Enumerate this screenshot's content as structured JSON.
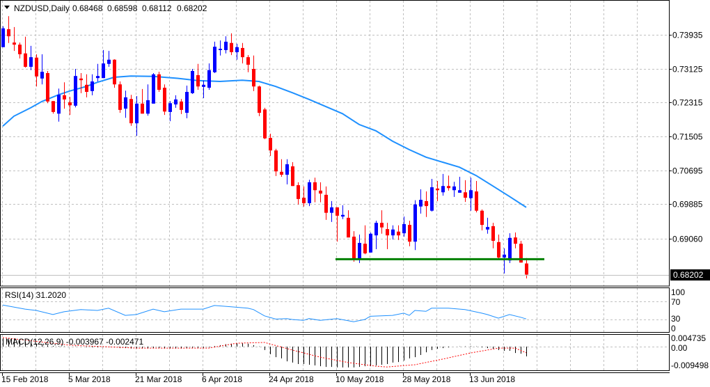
{
  "header": {
    "symbol": "NZDUSD,Daily",
    "open": "0.68468",
    "high": "0.68598",
    "low": "0.68112",
    "close": "0.68202",
    "menu_icon": "triangle-down-icon"
  },
  "colors": {
    "bull": "#0000ff",
    "bear": "#ff0000",
    "ma": "#1e90ff",
    "support": "#008000",
    "rsi": "#1e90ff",
    "macd_hist": "#000000",
    "macd_signal": "#ff0000",
    "grid": "#c0c0c0"
  },
  "rsi_panel": {
    "label": "RSI(14) 31.2020",
    "ticks": [
      "100",
      "70",
      "30",
      "0"
    ]
  },
  "macd_panel": {
    "label": "MACD(12,26,9) -0.003967 -0.002471",
    "ticks": [
      "0.004735",
      "0.00",
      "-0.009498"
    ]
  },
  "current_price_label": "0.68202",
  "chart_data": [
    {
      "type": "candlestick",
      "title": "NZDUSD,Daily",
      "price_ticks": [
        0.73935,
        0.73125,
        0.72315,
        0.71505,
        0.70695,
        0.69885,
        0.6906
      ],
      "price_tick_labels": [
        "0.73935",
        "0.73125",
        "0.72315",
        "0.71505",
        "0.70695",
        "0.69885",
        "0.69060"
      ],
      "date_labels": [
        "15 Feb 2018",
        "5 Mar 2018",
        "21 Mar 2018",
        "6 Apr 2018",
        "24 Apr 2018",
        "10 May 2018",
        "28 May 2018",
        "13 Jun 2018"
      ],
      "date_label_bar_index": [
        0,
        12,
        24,
        36,
        48,
        60,
        72,
        84
      ],
      "ohlc": [
        [
          0.7364,
          0.7414,
          0.7364,
          0.7409
        ],
        [
          0.7407,
          0.7438,
          0.7374,
          0.739
        ],
        [
          0.7375,
          0.7412,
          0.7355,
          0.737
        ],
        [
          0.737,
          0.7375,
          0.7337,
          0.7347
        ],
        [
          0.7349,
          0.7389,
          0.7315,
          0.7317
        ],
        [
          0.7317,
          0.7367,
          0.7309,
          0.734
        ],
        [
          0.7339,
          0.7347,
          0.727,
          0.7294
        ],
        [
          0.7289,
          0.7347,
          0.7275,
          0.7305
        ],
        [
          0.7302,
          0.7307,
          0.723,
          0.7234
        ],
        [
          0.7235,
          0.7235,
          0.7205,
          0.7209
        ],
        [
          0.7205,
          0.7265,
          0.7186,
          0.725
        ],
        [
          0.7249,
          0.728,
          0.7217,
          0.7239
        ],
        [
          0.7232,
          0.7245,
          0.7202,
          0.7225
        ],
        [
          0.7224,
          0.7312,
          0.722,
          0.7295
        ],
        [
          0.7289,
          0.7302,
          0.7254,
          0.7285
        ],
        [
          0.7274,
          0.7299,
          0.7244,
          0.7257
        ],
        [
          0.7259,
          0.7299,
          0.7249,
          0.7282
        ],
        [
          0.729,
          0.7324,
          0.7282,
          0.7295
        ],
        [
          0.729,
          0.7357,
          0.729,
          0.7325
        ],
        [
          0.7324,
          0.7355,
          0.7317,
          0.7334
        ],
        [
          0.7334,
          0.7335,
          0.7267,
          0.7275
        ],
        [
          0.7275,
          0.7282,
          0.7207,
          0.7214
        ],
        [
          0.7217,
          0.726,
          0.7195,
          0.7244
        ],
        [
          0.724,
          0.725,
          0.7176,
          0.7182
        ],
        [
          0.7182,
          0.7247,
          0.7152,
          0.7229
        ],
        [
          0.7229,
          0.7264,
          0.7205,
          0.7205
        ],
        [
          0.7205,
          0.7275,
          0.72,
          0.7237
        ],
        [
          0.7229,
          0.7302,
          0.7229,
          0.7299
        ],
        [
          0.7299,
          0.7305,
          0.7257,
          0.7262
        ],
        [
          0.7267,
          0.7275,
          0.7202,
          0.721
        ],
        [
          0.7209,
          0.7235,
          0.7187,
          0.723
        ],
        [
          0.7227,
          0.7249,
          0.7219,
          0.7239
        ],
        [
          0.7234,
          0.724,
          0.7204,
          0.7214
        ],
        [
          0.7207,
          0.7272,
          0.7194,
          0.7257
        ],
        [
          0.7254,
          0.7312,
          0.7252,
          0.7307
        ],
        [
          0.7297,
          0.7324,
          0.7262,
          0.727
        ],
        [
          0.7269,
          0.7284,
          0.7242,
          0.7274
        ],
        [
          0.7267,
          0.7325,
          0.7262,
          0.7309
        ],
        [
          0.7304,
          0.7377,
          0.7302,
          0.7365
        ],
        [
          0.7357,
          0.738,
          0.7344,
          0.736
        ],
        [
          0.7357,
          0.739,
          0.7349,
          0.7377
        ],
        [
          0.7374,
          0.7397,
          0.7345,
          0.7352
        ],
        [
          0.7352,
          0.7372,
          0.7334,
          0.7364
        ],
        [
          0.7362,
          0.7374,
          0.7325,
          0.734
        ],
        [
          0.734,
          0.7345,
          0.7304,
          0.7322
        ],
        [
          0.7312,
          0.7344,
          0.7259,
          0.727
        ],
        [
          0.727,
          0.7272,
          0.7199,
          0.7207
        ],
        [
          0.7215,
          0.7219,
          0.7144,
          0.7146
        ],
        [
          0.7147,
          0.7157,
          0.7104,
          0.7117
        ],
        [
          0.7117,
          0.7121,
          0.7056,
          0.7067
        ],
        [
          0.7066,
          0.7096,
          0.7054,
          0.7059
        ],
        [
          0.7059,
          0.7096,
          0.7036,
          0.7084
        ],
        [
          0.7079,
          0.7089,
          0.7032,
          0.7032
        ],
        [
          0.7034,
          0.7041,
          0.6988,
          0.7001
        ],
        [
          0.7004,
          0.7031,
          0.6983,
          0.6991
        ],
        [
          0.6991,
          0.7047,
          0.6984,
          0.7041
        ],
        [
          0.7041,
          0.7052,
          0.6993,
          0.7022
        ],
        [
          0.7021,
          0.7041,
          0.6993,
          0.7014
        ],
        [
          0.7011,
          0.7031,
          0.6951,
          0.6968
        ],
        [
          0.6968,
          0.6996,
          0.6946,
          0.6981
        ],
        [
          0.6981,
          0.6981,
          0.6899,
          0.6961
        ],
        [
          0.6959,
          0.6986,
          0.6953,
          0.6963
        ],
        [
          0.6956,
          0.6974,
          0.6909,
          0.6909
        ],
        [
          0.6911,
          0.6924,
          0.6851,
          0.6859
        ],
        [
          0.6858,
          0.6916,
          0.6848,
          0.6896
        ],
        [
          0.6894,
          0.6938,
          0.6869,
          0.6871
        ],
        [
          0.6873,
          0.6921,
          0.6873,
          0.6918
        ],
        [
          0.6914,
          0.6949,
          0.6881,
          0.6944
        ],
        [
          0.6944,
          0.6974,
          0.6918,
          0.6933
        ],
        [
          0.6929,
          0.6944,
          0.6881,
          0.6914
        ],
        [
          0.6914,
          0.6938,
          0.6904,
          0.6928
        ],
        [
          0.6923,
          0.6938,
          0.6903,
          0.6914
        ],
        [
          0.6919,
          0.6959,
          0.6911,
          0.6941
        ],
        [
          0.6939,
          0.6949,
          0.6888,
          0.6899
        ],
        [
          0.6899,
          0.6998,
          0.6879,
          0.6988
        ],
        [
          0.6983,
          0.7024,
          0.6966,
          0.6999
        ],
        [
          0.6996,
          0.7019,
          0.6958,
          0.6984
        ],
        [
          0.6973,
          0.7049,
          0.6971,
          0.7029
        ],
        [
          0.7026,
          0.7044,
          0.6996,
          0.7022
        ],
        [
          0.7017,
          0.7061,
          0.7009,
          0.7032
        ],
        [
          0.7032,
          0.7057,
          0.7021,
          0.7027
        ],
        [
          0.7022,
          0.7042,
          0.7006,
          0.7031
        ],
        [
          0.7016,
          0.7054,
          0.7016,
          0.7022
        ],
        [
          0.7017,
          0.7046,
          0.6994,
          0.7004
        ],
        [
          0.7003,
          0.7052,
          0.6973,
          0.7022
        ],
        [
          0.7019,
          0.7044,
          0.6969,
          0.6973
        ],
        [
          0.6973,
          0.6976,
          0.6926,
          0.6939
        ],
        [
          0.6928,
          0.6956,
          0.6918,
          0.6934
        ],
        [
          0.6936,
          0.6944,
          0.6883,
          0.6901
        ],
        [
          0.6898,
          0.6916,
          0.6859,
          0.6861
        ],
        [
          0.6861,
          0.6883,
          0.6823,
          0.6868
        ],
        [
          0.6854,
          0.6919,
          0.6848,
          0.6908
        ],
        [
          0.6909,
          0.6921,
          0.6883,
          0.6894
        ],
        [
          0.6894,
          0.6901,
          0.6849,
          0.6849
        ],
        [
          0.68468,
          0.68598,
          0.68112,
          0.68202
        ]
      ],
      "moving_average": [
        [
          0,
          0.7175
        ],
        [
          2,
          0.7199
        ],
        [
          5,
          0.7219
        ],
        [
          7,
          0.7234
        ],
        [
          10,
          0.725
        ],
        [
          12,
          0.7259
        ],
        [
          15,
          0.727
        ],
        [
          17,
          0.728
        ],
        [
          20,
          0.7292
        ],
        [
          23,
          0.7295
        ],
        [
          27,
          0.7294
        ],
        [
          31,
          0.729
        ],
        [
          35,
          0.7284
        ],
        [
          39,
          0.7282
        ],
        [
          43,
          0.7285
        ],
        [
          46,
          0.7282
        ],
        [
          49,
          0.727
        ],
        [
          52,
          0.7255
        ],
        [
          55,
          0.7239
        ],
        [
          58,
          0.7222
        ],
        [
          61,
          0.7205
        ],
        [
          64,
          0.7179
        ],
        [
          67,
          0.7164
        ],
        [
          70,
          0.7139
        ],
        [
          73,
          0.7119
        ],
        [
          76,
          0.7101
        ],
        [
          79,
          0.7089
        ],
        [
          82,
          0.7077
        ],
        [
          85,
          0.7057
        ],
        [
          88,
          0.7032
        ],
        [
          91,
          0.7007
        ],
        [
          94,
          0.6981
        ]
      ],
      "support_level": {
        "price": 0.6857,
        "from_bar": 60,
        "to_bar": 97
      },
      "current_price": 0.68202
    },
    {
      "type": "line",
      "title": "RSI(14)",
      "value": 31.202,
      "ylim": [
        0,
        100
      ],
      "levels": [
        70,
        30
      ],
      "points": [
        [
          0,
          62
        ],
        [
          4,
          53
        ],
        [
          6,
          50
        ],
        [
          9,
          41
        ],
        [
          11,
          47
        ],
        [
          14,
          52
        ],
        [
          17,
          50
        ],
        [
          19,
          55
        ],
        [
          22,
          39
        ],
        [
          24,
          41
        ],
        [
          27,
          53
        ],
        [
          29,
          47
        ],
        [
          32,
          53
        ],
        [
          36,
          53
        ],
        [
          38,
          61
        ],
        [
          41,
          58
        ],
        [
          44,
          55
        ],
        [
          45,
          52
        ],
        [
          47,
          38
        ],
        [
          49,
          31
        ],
        [
          51,
          32
        ],
        [
          52,
          30
        ],
        [
          54,
          28
        ],
        [
          55,
          32
        ],
        [
          57,
          28
        ],
        [
          60,
          32
        ],
        [
          63,
          25
        ],
        [
          65,
          30
        ],
        [
          66,
          37
        ],
        [
          70,
          39
        ],
        [
          72,
          44
        ],
        [
          73,
          39
        ],
        [
          74,
          50
        ],
        [
          76,
          48
        ],
        [
          77,
          55
        ],
        [
          80,
          55
        ],
        [
          83,
          52
        ],
        [
          86,
          44
        ],
        [
          87,
          41
        ],
        [
          89,
          33
        ],
        [
          91,
          41
        ],
        [
          93,
          35
        ],
        [
          94,
          31.2
        ]
      ]
    },
    {
      "type": "bar",
      "title": "MACD(12,26,9)",
      "macd": -0.003967,
      "signal_value": -0.002471,
      "ylim": [
        -0.009498,
        0.004735
      ],
      "histogram": [
        0.0034,
        0.0034,
        0.0034,
        0.0025,
        0.002,
        0.0015,
        0.0012,
        0.001,
        0.0006,
        0.0003,
        0.0002,
        0.0001,
        0.0,
        0.0001,
        0.0,
        -0.0002,
        -0.0003,
        -0.0003,
        -0.0002,
        -0.0001,
        -0.0003,
        -0.0006,
        -0.0006,
        -0.0008,
        -0.0008,
        -0.0008,
        -0.0008,
        -0.0006,
        -0.0006,
        -0.0008,
        -0.0008,
        -0.0008,
        -0.0008,
        -0.0006,
        -0.0004,
        -0.0004,
        -0.0004,
        -0.0002,
        0.0002,
        0.0006,
        0.001,
        0.0012,
        0.0014,
        0.0014,
        0.0012,
        0.0006,
        0.0001,
        -0.0014,
        -0.0031,
        -0.0043,
        -0.0048,
        -0.006,
        -0.0065,
        -0.0071,
        -0.0071,
        -0.0074,
        -0.0077,
        -0.008,
        -0.0083,
        -0.0083,
        -0.0085,
        -0.0085,
        -0.0085,
        -0.0085,
        -0.0083,
        -0.008,
        -0.008,
        -0.0077,
        -0.0074,
        -0.0071,
        -0.0065,
        -0.0063,
        -0.0057,
        -0.0048,
        -0.0043,
        -0.0034,
        -0.0023,
        -0.0014,
        -0.0009,
        -0.0006,
        -0.0003,
        0.0,
        0.0001,
        0.0001,
        0.0002,
        0.0001,
        -0.0003,
        -0.0006,
        -0.0009,
        -0.0014,
        -0.0017,
        -0.0017,
        -0.0026,
        -0.0029,
        -0.004
      ],
      "signal": [
        [
          0,
          0.0037
        ],
        [
          12,
          0.0006
        ],
        [
          24,
          -0.0006
        ],
        [
          37,
          -0.0006
        ],
        [
          42,
          0.0014
        ],
        [
          47,
          0.0017
        ],
        [
          52,
          -0.0014
        ],
        [
          57,
          -0.0043
        ],
        [
          62,
          -0.0065
        ],
        [
          67,
          -0.008
        ],
        [
          69,
          -0.0083
        ],
        [
          74,
          -0.0074
        ],
        [
          79,
          -0.0051
        ],
        [
          84,
          -0.0026
        ],
        [
          89,
          -0.0006
        ],
        [
          92,
          -0.0006
        ],
        [
          94,
          -0.0025
        ]
      ]
    }
  ]
}
